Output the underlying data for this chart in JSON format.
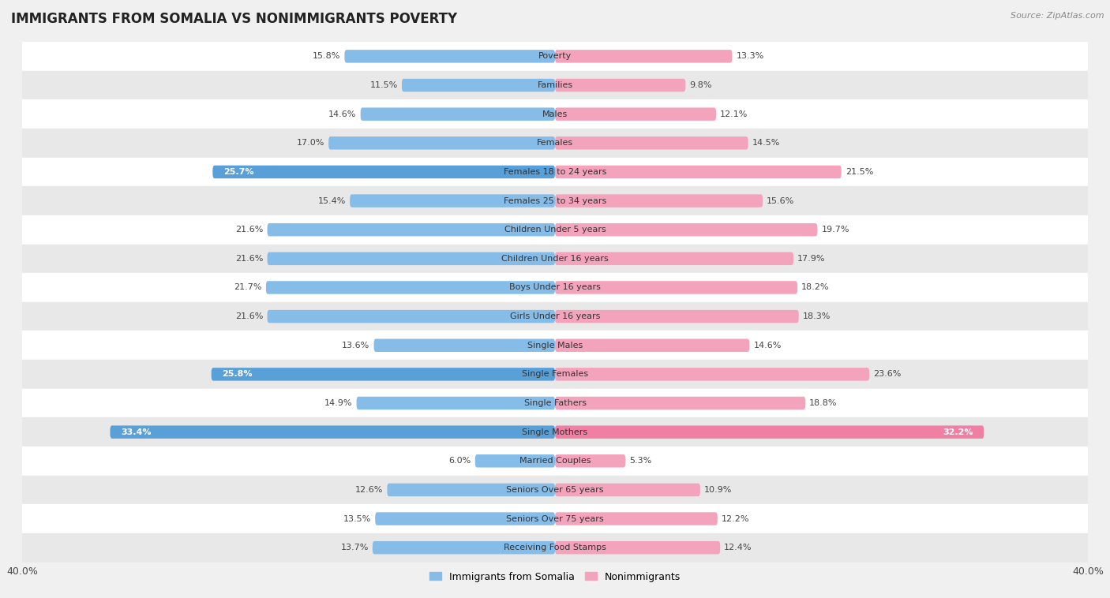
{
  "title": "IMMIGRANTS FROM SOMALIA VS NONIMMIGRANTS POVERTY",
  "source": "Source: ZipAtlas.com",
  "categories": [
    "Poverty",
    "Families",
    "Males",
    "Females",
    "Females 18 to 24 years",
    "Females 25 to 34 years",
    "Children Under 5 years",
    "Children Under 16 years",
    "Boys Under 16 years",
    "Girls Under 16 years",
    "Single Males",
    "Single Females",
    "Single Fathers",
    "Single Mothers",
    "Married Couples",
    "Seniors Over 65 years",
    "Seniors Over 75 years",
    "Receiving Food Stamps"
  ],
  "somalia_values": [
    15.8,
    11.5,
    14.6,
    17.0,
    25.7,
    15.4,
    21.6,
    21.6,
    21.7,
    21.6,
    13.6,
    25.8,
    14.9,
    33.4,
    6.0,
    12.6,
    13.5,
    13.7
  ],
  "nonimmigrant_values": [
    13.3,
    9.8,
    12.1,
    14.5,
    21.5,
    15.6,
    19.7,
    17.9,
    18.2,
    18.3,
    14.6,
    23.6,
    18.8,
    32.2,
    5.3,
    10.9,
    12.2,
    12.4
  ],
  "somalia_color": "#85BCE8",
  "nonimmigrant_color": "#F4A3BC",
  "highlight_somalia": [
    4,
    11,
    13
  ],
  "highlight_nonimmigrant": [
    13
  ],
  "highlight_somalia_color": "#5AA0D8",
  "highlight_nonimmigrant_color": "#EF7FA3",
  "background_color": "#f0f0f0",
  "row_bg_white": "#ffffff",
  "row_bg_gray": "#e8e8e8",
  "xlim": 40.0,
  "bar_height": 0.45,
  "title_fontsize": 12,
  "label_fontsize": 8,
  "value_fontsize": 8,
  "legend_fontsize": 9
}
